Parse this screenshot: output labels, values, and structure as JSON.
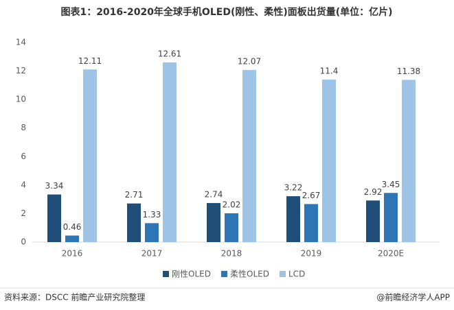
{
  "chart_data": {
    "type": "bar",
    "title": "图表1：2016-2020年全球手机OLED(刚性、柔性)面板出货量(单位：亿片)",
    "categories": [
      "2016",
      "2017",
      "2018",
      "2019",
      "2020E"
    ],
    "series": [
      {
        "name": "刚性OLED",
        "color": "#1f4e79",
        "values": [
          3.34,
          2.71,
          2.74,
          3.22,
          2.92
        ]
      },
      {
        "name": "柔性OLED",
        "color": "#2e75b6",
        "values": [
          0.46,
          1.33,
          2.02,
          2.67,
          3.45
        ]
      },
      {
        "name": "LCD",
        "color": "#9dc3e6",
        "values": [
          12.11,
          12.61,
          12.07,
          11.4,
          11.38
        ]
      }
    ],
    "ylim": [
      0,
      14
    ],
    "yticks": [
      0,
      2,
      4,
      6,
      8,
      10,
      12,
      14
    ],
    "grid": false,
    "legend": "bottom",
    "source": "资料来源：DSCC 前瞻产业研究院整理",
    "credit": "@前瞻经济学人APP"
  }
}
